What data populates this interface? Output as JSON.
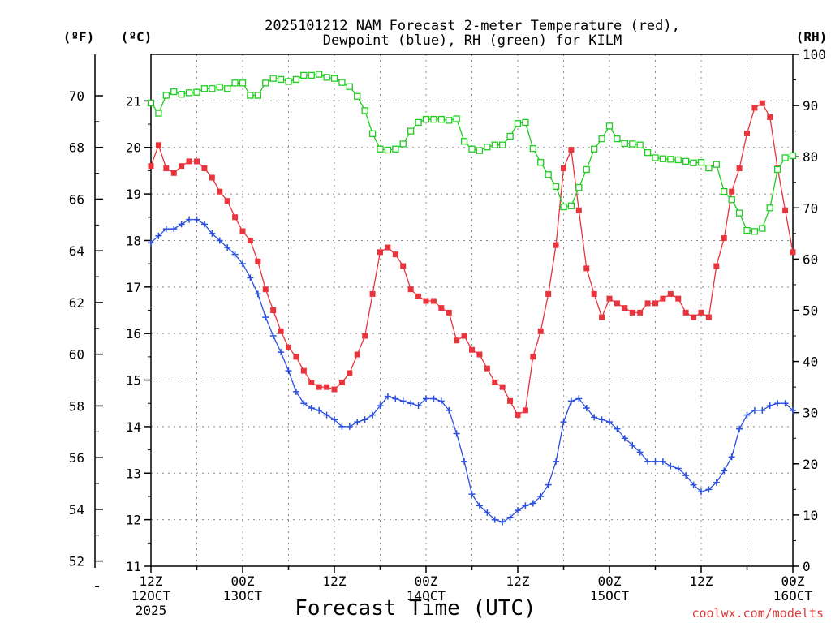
{
  "chart_data": {
    "type": "line",
    "title_line1": "2025101212 NAM Forecast 2-meter Temperature (red),",
    "title_line2": "Dewpoint (blue), RH (green) for KILM",
    "xlabel": "Forecast Time (UTC)",
    "credit": "coolwx.com/modelts",
    "units": {
      "fahrenheit": "(ºF)",
      "celsius": "(ºC)",
      "rh": "(RH)"
    },
    "x_hours_range": [
      0,
      84
    ],
    "ylim_celsius": [
      11,
      22
    ],
    "ylim_rh": [
      0,
      100
    ],
    "left_f_ticks": [
      "52",
      "54",
      "56",
      "58",
      "60",
      "62",
      "64",
      "66",
      "68",
      "70"
    ],
    "celsius_ticks": [
      "11",
      "12",
      "13",
      "14",
      "15",
      "16",
      "17",
      "18",
      "19",
      "20",
      "21"
    ],
    "rh_ticks": [
      "0",
      "10",
      "20",
      "30",
      "40",
      "50",
      "60",
      "70",
      "80",
      "90",
      "100"
    ],
    "x_ticks": [
      {
        "hour": 0,
        "line1": "12Z",
        "line2": "12OCT",
        "line3": "2025"
      },
      {
        "hour": 12,
        "line1": "00Z",
        "line2": "13OCT",
        "line3": ""
      },
      {
        "hour": 24,
        "line1": "12Z",
        "line2": "",
        "line3": ""
      },
      {
        "hour": 36,
        "line1": "00Z",
        "line2": "14OCT",
        "line3": ""
      },
      {
        "hour": 48,
        "line1": "12Z",
        "line2": "",
        "line3": ""
      },
      {
        "hour": 60,
        "line1": "00Z",
        "line2": "15OCT",
        "line3": ""
      },
      {
        "hour": 72,
        "line1": "12Z",
        "line2": "",
        "line3": ""
      },
      {
        "hour": 84,
        "line1": "00Z",
        "line2": "16OCT",
        "line3": ""
      }
    ],
    "series": [
      {
        "name": "2-meter Temperature",
        "unit": "C",
        "color": "#e8343c",
        "marker": "filled-square",
        "values": [
          19.6,
          20.05,
          19.55,
          19.45,
          19.6,
          19.7,
          19.7,
          19.55,
          19.35,
          19.05,
          18.85,
          18.5,
          18.2,
          18.0,
          17.55,
          16.95,
          16.5,
          16.05,
          15.7,
          15.5,
          15.2,
          14.95,
          14.85,
          14.85,
          14.8,
          14.95,
          15.15,
          15.55,
          15.95,
          16.85,
          17.75,
          17.85,
          17.7,
          17.45,
          16.95,
          16.8,
          16.7,
          16.7,
          16.55,
          16.45,
          15.85,
          15.95,
          15.65,
          15.55,
          15.25,
          14.95,
          14.85,
          14.55,
          14.25,
          14.35,
          15.5,
          16.05,
          16.85,
          17.9,
          19.55,
          19.95,
          18.65,
          17.4,
          16.85,
          16.35,
          16.75,
          16.65,
          16.55,
          16.45,
          16.45,
          16.65,
          16.65,
          16.75,
          16.85,
          16.75,
          16.45,
          16.35,
          16.45,
          16.35,
          17.45,
          18.05,
          19.05,
          19.55,
          20.3,
          20.85,
          20.95,
          20.65,
          19.55,
          18.65,
          17.75
        ]
      },
      {
        "name": "Dewpoint",
        "unit": "C",
        "color": "#2b4fe0",
        "marker": "plus",
        "values": [
          17.95,
          18.1,
          18.25,
          18.25,
          18.35,
          18.45,
          18.45,
          18.35,
          18.15,
          18.0,
          17.85,
          17.7,
          17.5,
          17.2,
          16.85,
          16.35,
          15.95,
          15.6,
          15.2,
          14.75,
          14.5,
          14.4,
          14.35,
          14.25,
          14.15,
          14.0,
          14.0,
          14.1,
          14.15,
          14.25,
          14.45,
          14.65,
          14.6,
          14.55,
          14.5,
          14.45,
          14.6,
          14.6,
          14.55,
          14.35,
          13.85,
          13.25,
          12.55,
          12.3,
          12.15,
          12.0,
          11.95,
          12.05,
          12.2,
          12.3,
          12.35,
          12.5,
          12.75,
          13.25,
          14.1,
          14.55,
          14.6,
          14.4,
          14.2,
          14.15,
          14.1,
          13.95,
          13.75,
          13.6,
          13.45,
          13.25,
          13.25,
          13.25,
          13.15,
          13.1,
          12.95,
          12.75,
          12.6,
          12.65,
          12.8,
          13.05,
          13.35,
          13.95,
          14.25,
          14.35,
          14.35,
          14.45,
          14.5,
          14.5,
          14.35
        ]
      },
      {
        "name": "RH",
        "unit": "%",
        "color": "#1fcc1f",
        "marker": "open-square",
        "values": [
          90.5,
          88.5,
          92.0,
          92.7,
          92.2,
          92.5,
          92.6,
          93.3,
          93.3,
          93.6,
          93.3,
          94.4,
          94.4,
          92.0,
          92.0,
          94.4,
          95.3,
          95.1,
          94.7,
          95.1,
          95.9,
          95.9,
          96.1,
          95.5,
          95.3,
          94.5,
          93.7,
          91.8,
          89.0,
          84.5,
          81.5,
          81.3,
          81.5,
          82.5,
          85.0,
          86.7,
          87.3,
          87.3,
          87.3,
          87.1,
          87.4,
          83.0,
          81.5,
          81.2,
          81.9,
          82.3,
          82.3,
          84.0,
          86.5,
          86.7,
          81.6,
          78.9,
          76.5,
          74.2,
          70.2,
          70.4,
          74.0,
          77.5,
          81.5,
          83.5,
          86.0,
          83.5,
          82.6,
          82.5,
          82.3,
          80.8,
          79.8,
          79.6,
          79.5,
          79.4,
          79.1,
          78.8,
          78.9,
          77.8,
          78.5,
          73.2,
          71.6,
          69.0,
          65.6,
          65.4,
          66.0,
          70.0,
          77.5,
          79.8,
          80.2
        ]
      }
    ]
  }
}
